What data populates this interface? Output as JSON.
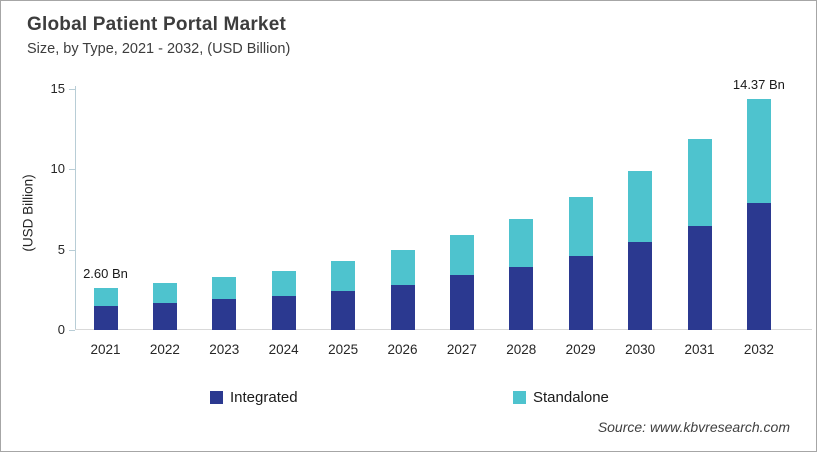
{
  "header": {
    "title": "Global Patient Portal Market",
    "subtitle": "Size, by Type, 2021 - 2032, (USD Billion)"
  },
  "footer": {
    "source": "Source: www.kbvresearch.com"
  },
  "chart_data": {
    "type": "bar",
    "stacked": true,
    "title": "Global Patient Portal Market",
    "subtitle": "Size, by Type, 2021 - 2032, (USD Billion)",
    "ylabel": "(USD Billion)",
    "xlabel": "",
    "ylim": [
      0,
      15
    ],
    "yticks": [
      0,
      5,
      10,
      15
    ],
    "grid": false,
    "legend_position": "bottom",
    "categories": [
      "2021",
      "2022",
      "2023",
      "2024",
      "2025",
      "2026",
      "2027",
      "2028",
      "2029",
      "2030",
      "2031",
      "2032"
    ],
    "series": [
      {
        "name": "Integrated",
        "color": "#2B3990",
        "values": [
          1.5,
          1.7,
          1.9,
          2.1,
          2.4,
          2.8,
          3.4,
          3.9,
          4.6,
          5.5,
          6.5,
          7.9
        ]
      },
      {
        "name": "Standalone",
        "color": "#4EC3CE",
        "values": [
          1.1,
          1.2,
          1.4,
          1.6,
          1.9,
          2.2,
          2.5,
          3.0,
          3.7,
          4.4,
          5.4,
          6.47
        ]
      }
    ],
    "annotations": [
      {
        "category": "2021",
        "text": "2.60 Bn"
      },
      {
        "category": "2032",
        "text": "14.37 Bn"
      }
    ],
    "axis_colors": {
      "y_axis": "#b8cdd6",
      "x_axis": "#d9d9d9"
    }
  }
}
